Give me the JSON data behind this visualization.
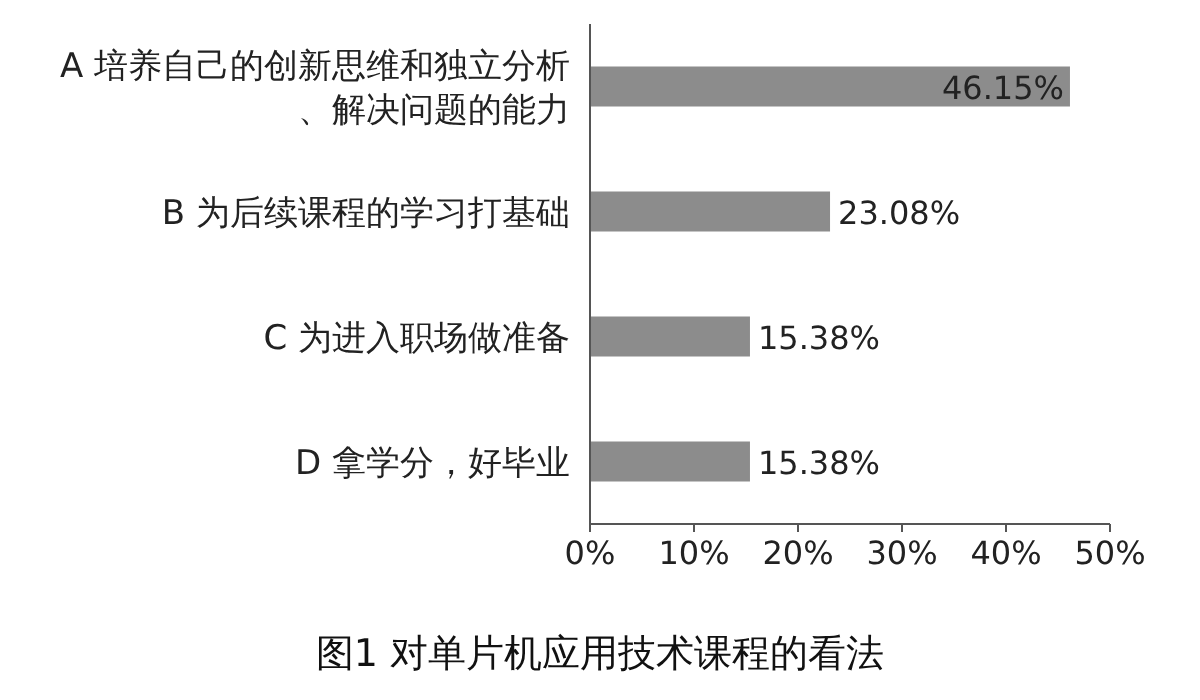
{
  "chart_data": {
    "type": "bar",
    "orientation": "horizontal",
    "title": "图1 对单片机应用技术课程的看法",
    "categories": [
      "A 培养自己的创新思维和独立分析、解决问题的能力",
      "B 为后续课程的学习打基础",
      "C 为进入职场做准备",
      "D 拿学分，好毕业"
    ],
    "values": [
      46.15,
      23.08,
      15.38,
      15.38
    ],
    "value_labels": [
      "46.15%",
      "23.08%",
      "15.38%",
      "15.38%"
    ],
    "color": "#8c8c8c",
    "xlim": [
      0,
      50
    ],
    "xticks": [
      {
        "value": 0,
        "label": "0%"
      },
      {
        "value": 10,
        "label": "10%"
      },
      {
        "value": 20,
        "label": "20%"
      },
      {
        "value": 30,
        "label": "30%"
      },
      {
        "value": 40,
        "label": "40%"
      },
      {
        "value": 50,
        "label": "50%"
      }
    ],
    "grid": false
  }
}
